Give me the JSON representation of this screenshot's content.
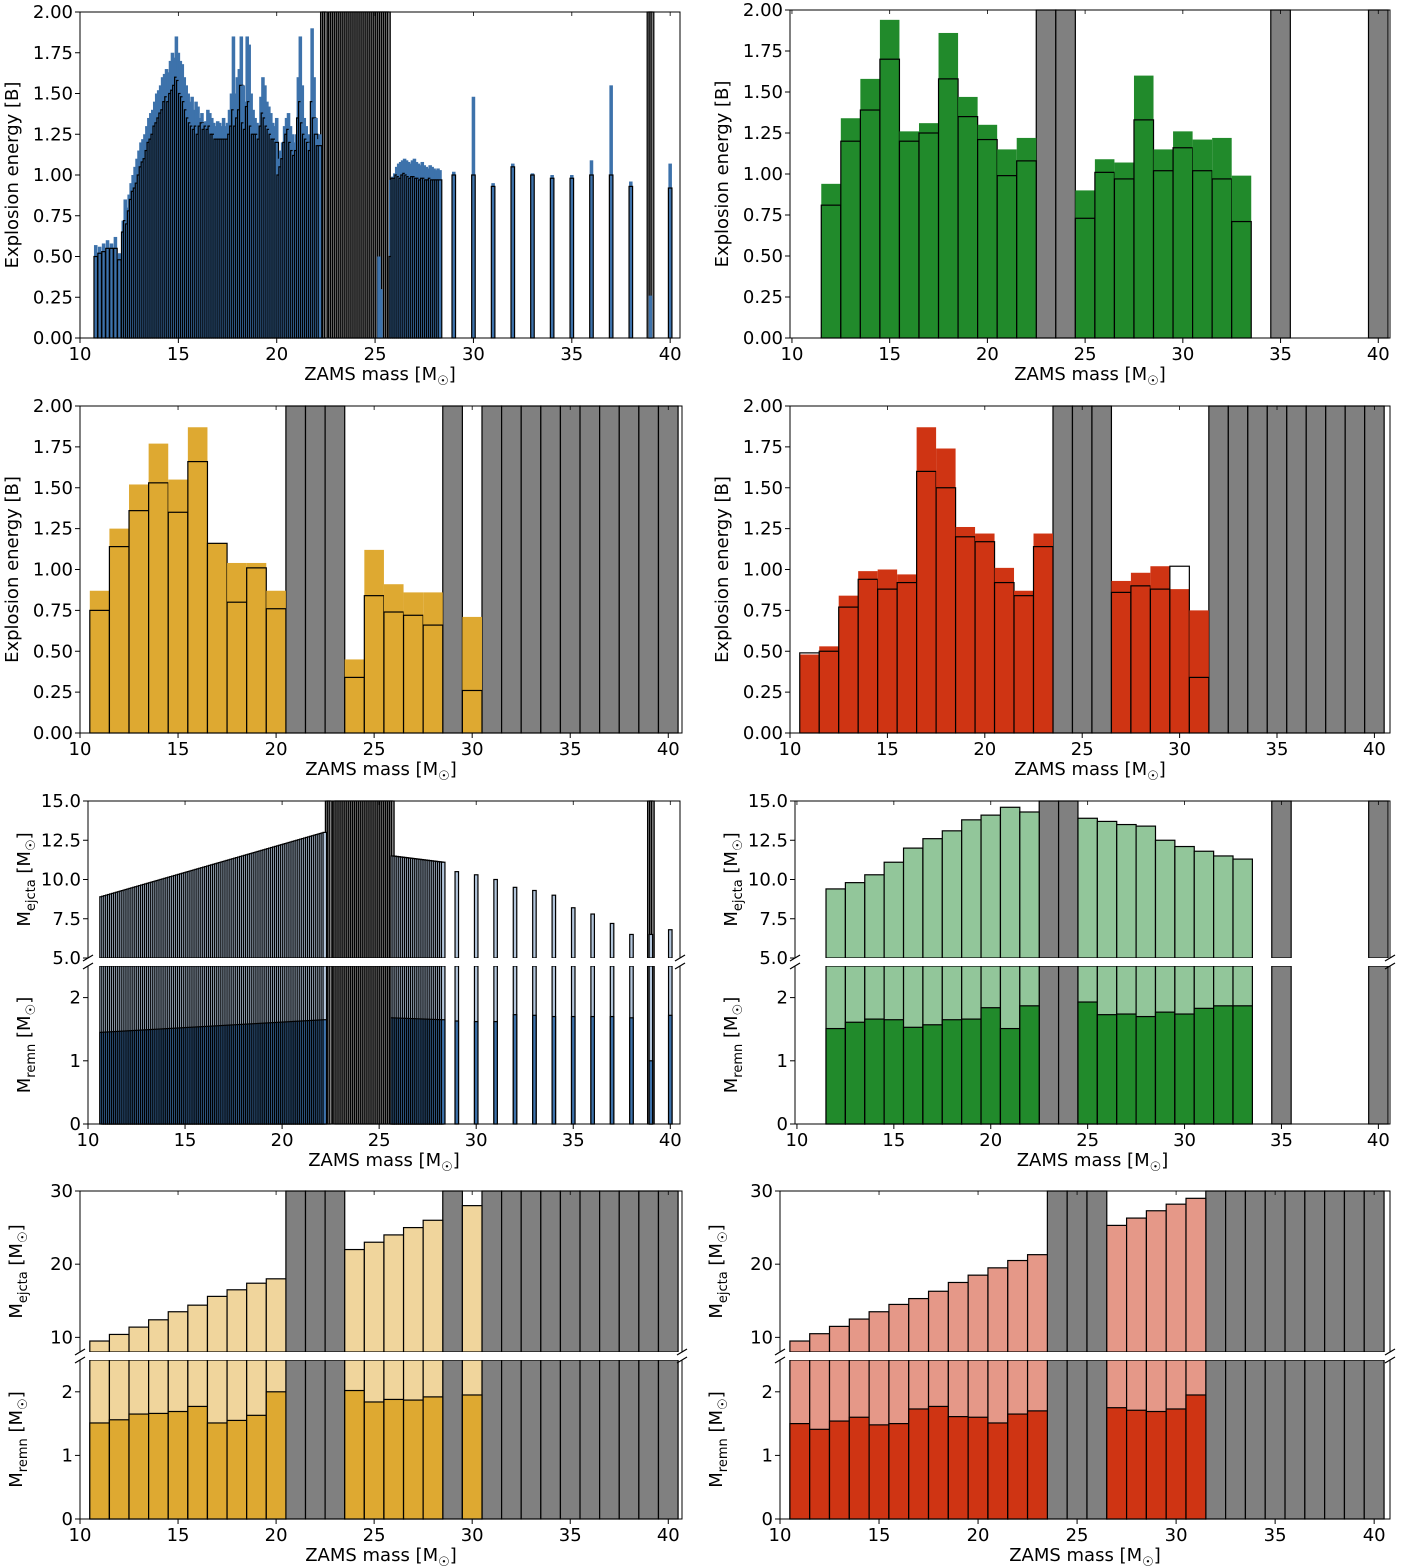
{
  "colors": {
    "blue": "#3d72ab",
    "blue_light": "#b3c6dc",
    "green": "#218a2b",
    "green_light": "#92c69a",
    "gold": "#dea931",
    "gold_light": "#f0d59c",
    "red": "#cf3413",
    "red_light": "#e59888",
    "gray": "#808080"
  },
  "chart_data": [
    {
      "id": "blue_energy",
      "type": "bar",
      "xlabel": "ZAMS mass [M☉]",
      "ylabel": "Explosion energy [B]",
      "xlim": [
        10,
        40.5
      ],
      "ylim": [
        0,
        2.0
      ],
      "xticks": [
        10,
        15,
        20,
        25,
        30,
        35,
        40
      ],
      "yticks": [
        0.0,
        0.25,
        0.5,
        0.75,
        1.0,
        1.25,
        1.5,
        1.75,
        2.0
      ],
      "ytick_labels": [
        "0.00",
        "0.25",
        "0.50",
        "0.75",
        "1.00",
        "1.25",
        "1.50",
        "1.75",
        "2.00"
      ],
      "bar_width": 0.18,
      "bins": [
        {
          "x": [
            10.8,
            12.0
          ],
          "step": 0.2,
          "total": [
            0.57,
            0.56,
            0.58,
            0.6,
            0.58,
            0.62,
            0.52
          ],
          "outline": [
            0.5,
            0.52,
            0.53,
            0.55,
            0.55,
            0.55,
            0.48
          ]
        },
        {
          "x": [
            12.2,
            14.0
          ],
          "step": 0.1,
          "total": [
            0.72,
            0.85,
            0.8,
            0.88,
            0.95,
            1.0,
            1.05,
            1.1,
            1.15,
            1.2,
            1.22,
            1.25,
            1.3,
            1.35,
            1.38,
            1.4,
            1.45,
            1.5,
            1.52
          ],
          "outline": [
            0.65,
            0.72,
            0.7,
            0.78,
            0.85,
            0.9,
            0.92,
            0.95,
            1.0,
            1.05,
            1.08,
            1.1,
            1.15,
            1.2,
            1.22,
            1.25,
            1.3,
            1.32,
            1.35
          ]
        },
        {
          "x": [
            14.1,
            16.0
          ],
          "step": 0.1,
          "total": [
            1.55,
            1.6,
            1.62,
            1.65,
            1.63,
            1.7,
            1.75,
            1.72,
            1.85,
            1.75,
            1.7,
            1.68,
            1.6,
            1.55,
            1.5,
            1.45,
            1.48,
            1.4,
            1.45,
            1.42
          ],
          "outline": [
            1.38,
            1.4,
            1.45,
            1.48,
            1.45,
            1.5,
            1.52,
            1.55,
            1.6,
            1.58,
            1.5,
            1.48,
            1.45,
            1.4,
            1.35,
            1.32,
            1.3,
            1.28,
            1.3,
            1.25
          ]
        },
        {
          "x": [
            16.1,
            20.0
          ],
          "step": 0.1,
          "total": [
            1.35,
            1.38,
            1.32,
            1.33,
            1.4,
            1.38,
            1.35,
            1.32,
            1.3,
            1.33,
            1.32,
            1.3,
            1.35,
            1.3,
            1.32,
            1.4,
            1.5,
            1.85,
            1.5,
            1.6,
            1.65,
            1.85,
            1.55,
            1.45,
            1.85,
            1.8,
            1.5,
            1.4,
            1.35,
            1.32,
            1.3,
            1.48,
            1.6,
            1.55,
            1.45,
            1.42,
            1.38,
            1.32,
            1.3,
            1.35
          ],
          "outline": [
            1.3,
            1.32,
            1.28,
            1.3,
            1.28,
            1.3,
            1.25,
            1.25,
            1.22,
            1.22,
            1.22,
            1.22,
            1.22,
            1.22,
            1.22,
            1.25,
            1.3,
            1.4,
            1.3,
            1.35,
            1.4,
            1.55,
            1.32,
            1.28,
            1.42,
            1.45,
            1.3,
            1.25,
            1.25,
            1.25,
            1.22,
            1.3,
            1.38,
            1.35,
            1.3,
            1.28,
            1.25,
            1.22,
            1.22,
            1.2
          ]
        },
        {
          "x": [
            20.1,
            22.2
          ],
          "step": 0.1,
          "total": [
            1.1,
            1.15,
            1.2,
            1.3,
            1.35,
            1.38,
            1.3,
            1.25,
            1.2,
            1.25,
            1.6,
            1.85,
            1.55,
            1.35,
            1.3,
            1.25,
            1.2,
            1.9,
            1.6,
            1.35,
            1.22,
            1.25
          ],
          "outline": [
            1.0,
            1.05,
            1.1,
            1.2,
            1.25,
            1.28,
            1.2,
            1.15,
            1.12,
            1.15,
            1.35,
            1.45,
            1.32,
            1.25,
            1.22,
            1.2,
            1.15,
            1.45,
            1.35,
            1.25,
            1.18,
            1.18
          ]
        },
        {
          "x": [
            25.2,
            25.3
          ],
          "step": 0.1,
          "total": [
            0.5,
            0.3
          ],
          "outline": [
            0,
            0
          ]
        },
        {
          "x": [
            25.8,
            28.3
          ],
          "step": 0.1,
          "total": [
            0.97,
            0.99,
            1.01,
            1.05,
            1.07,
            1.08,
            1.09,
            1.1,
            1.09,
            1.08,
            1.07,
            1.09,
            1.1,
            1.08,
            1.07,
            1.06,
            1.08,
            1.06,
            1.05,
            1.04,
            1.06,
            1.05,
            1.04,
            1.03,
            1.04,
            1.03
          ],
          "outline": [
            0.5,
            0.98,
            0.98,
            1.0,
            0.99,
            0.98,
            1.0,
            1.01,
            1.0,
            0.99,
            0.98,
            0.99,
            0.99,
            0.98,
            0.98,
            0.97,
            0.98,
            0.98,
            0.97,
            0.97,
            0.98,
            0.97,
            0.97,
            0.97,
            0.97,
            0.97
          ]
        },
        {
          "x": [
            29.0,
            40.0
          ],
          "step": 1.0,
          "total": [
            1.02,
            1.48,
            0.95,
            1.07,
            1.01,
            1.0,
            1.0,
            1.09,
            1.55,
            0.96,
            0.26,
            1.07
          ],
          "outline": [
            1.0,
            1.0,
            0.93,
            1.05,
            1.0,
            0.98,
            0.98,
            1.0,
            1.0,
            0.93,
            0.0,
            0.92
          ],
          "ex": [
            28.5,
            0,
            0,
            0,
            0,
            0,
            0,
            0,
            0,
            0,
            39.0,
            0
          ]
        }
      ],
      "gray": [
        [
          22.3,
          22.5
        ],
        [
          22.7,
          25.7
        ],
        [
          38.9,
          39.1
        ]
      ]
    },
    {
      "id": "green_energy",
      "type": "bar",
      "xlabel": "ZAMS mass [M☉]",
      "ylabel": "Explosion energy [B]",
      "xlim": [
        9.9,
        40.6
      ],
      "ylim": [
        0,
        2.0
      ],
      "xticks": [
        10,
        15,
        20,
        25,
        30,
        35,
        40
      ],
      "yticks": [
        0.0,
        0.25,
        0.5,
        0.75,
        1.0,
        1.25,
        1.5,
        1.75,
        2.0
      ],
      "ytick_labels": [
        "0.00",
        "0.25",
        "0.50",
        "0.75",
        "1.00",
        "1.25",
        "1.50",
        "1.75",
        "2.00"
      ],
      "bar_width": 1.0,
      "x": [
        12,
        13,
        14,
        15,
        16,
        17,
        18,
        19,
        20,
        21,
        22,
        25,
        26,
        27,
        28,
        29,
        30,
        31,
        32,
        33
      ],
      "total": [
        0.94,
        1.34,
        1.58,
        1.94,
        1.26,
        1.31,
        1.86,
        1.47,
        1.3,
        1.15,
        1.22,
        0.9,
        1.09,
        1.07,
        1.6,
        1.15,
        1.26,
        1.21,
        1.22,
        0.99
      ],
      "outline": [
        0.81,
        1.2,
        1.39,
        1.7,
        1.2,
        1.25,
        1.58,
        1.35,
        1.21,
        0.99,
        1.08,
        0.73,
        1.01,
        0.97,
        1.33,
        1.02,
        1.16,
        1.02,
        0.97,
        0.71
      ],
      "gray": [
        23,
        24,
        35,
        40
      ]
    },
    {
      "id": "gold_energy",
      "type": "bar",
      "xlabel": "ZAMS mass [M☉]",
      "ylabel": "Explosion energy [B]",
      "xlim": [
        10.0,
        40.7
      ],
      "ylim": [
        0,
        2.0
      ],
      "xticks": [
        10,
        15,
        20,
        25,
        30,
        35,
        40
      ],
      "yticks": [
        0.0,
        0.25,
        0.5,
        0.75,
        1.0,
        1.25,
        1.5,
        1.75,
        2.0
      ],
      "ytick_labels": [
        "0.00",
        "0.25",
        "0.50",
        "0.75",
        "1.00",
        "1.25",
        "1.50",
        "1.75",
        "2.00"
      ],
      "bar_width": 1.0,
      "x": [
        11,
        12,
        13,
        14,
        15,
        16,
        17,
        18,
        19,
        20,
        24,
        25,
        26,
        27,
        28,
        30
      ],
      "total": [
        0.87,
        1.25,
        1.52,
        1.77,
        1.55,
        1.87,
        1.16,
        1.04,
        1.04,
        0.87,
        0.45,
        1.12,
        0.91,
        0.86,
        0.86,
        0.71
      ],
      "outline": [
        0.75,
        1.14,
        1.36,
        1.53,
        1.35,
        1.66,
        1.16,
        0.8,
        1.01,
        0.76,
        0.34,
        0.84,
        0.74,
        0.72,
        0.66,
        0.26
      ],
      "gray": [
        21,
        22,
        23,
        29,
        31,
        32,
        33,
        34,
        35,
        36,
        37,
        38,
        39,
        40
      ]
    },
    {
      "id": "red_energy",
      "type": "bar",
      "xlabel": "ZAMS mass [M☉]",
      "ylabel": "Explosion energy [B]",
      "xlim": [
        10.0,
        40.8
      ],
      "ylim": [
        0,
        2.0
      ],
      "xticks": [
        10,
        15,
        20,
        25,
        30,
        35,
        40
      ],
      "yticks": [
        0.0,
        0.25,
        0.5,
        0.75,
        1.0,
        1.25,
        1.5,
        1.75,
        2.0
      ],
      "ytick_labels": [
        "0.00",
        "0.25",
        "0.50",
        "0.75",
        "1.00",
        "1.25",
        "1.50",
        "1.75",
        "2.00"
      ],
      "bar_width": 1.0,
      "x": [
        11,
        12,
        13,
        14,
        15,
        16,
        17,
        18,
        19,
        20,
        21,
        22,
        23,
        27,
        28,
        29,
        30,
        31
      ],
      "total": [
        0.48,
        0.53,
        0.84,
        0.99,
        1.0,
        0.97,
        1.87,
        1.74,
        1.26,
        1.22,
        1.01,
        0.87,
        1.22,
        0.93,
        0.98,
        1.02,
        0.88,
        0.75
      ],
      "outline": [
        0.49,
        0.5,
        0.77,
        0.94,
        0.88,
        0.92,
        1.6,
        1.5,
        1.2,
        1.17,
        0.92,
        0.84,
        1.14,
        0.86,
        0.9,
        0.88,
        1.02,
        0.34
      ],
      "gray": [
        24,
        25,
        26,
        32,
        33,
        34,
        35,
        36,
        37,
        38,
        39,
        40
      ]
    },
    {
      "id": "blue_mass",
      "type": "bar",
      "xlabel": "ZAMS mass [M☉]",
      "ylabel_top": "M_ejcta [M☉]",
      "ylabel_bottom": "M_remn [M☉]",
      "xlim": [
        10,
        40.5
      ],
      "ylim_top": [
        5,
        15
      ],
      "ylim_bottom": [
        0,
        2.5
      ],
      "xticks": [
        10,
        15,
        20,
        25,
        30,
        35,
        40
      ],
      "yticks_top": [
        5.0,
        7.5,
        10.0,
        12.5,
        15.0
      ],
      "ytick_labels_top": [
        "5.0",
        "7.5",
        "10.0",
        "12.5",
        "15.0"
      ],
      "yticks_bottom": [
        0,
        1,
        2
      ],
      "bar_width": 0.18,
      "bins": [
        {
          "x": [
            10.7,
            22.2
          ],
          "step": 0.1,
          "ej_start": 8.9,
          "ej_end": 13.0,
          "remn_start": 1.45,
          "remn_end": 1.65
        },
        {
          "x": [
            25.7,
            28.3
          ],
          "step": 0.1,
          "ej_start": 11.5,
          "ej_end": 11.1,
          "remn_start": 1.68,
          "remn_end": 1.65
        },
        {
          "x": [
            29.0,
            40.0
          ],
          "step": 1.0,
          "ej": [
            10.5,
            10.3,
            10.0,
            9.5,
            9.3,
            9.0,
            8.2,
            7.8,
            7.2,
            6.5,
            6.5,
            6.8
          ],
          "remn": [
            1.63,
            1.62,
            1.62,
            1.73,
            1.72,
            1.7,
            1.7,
            1.7,
            1.7,
            1.68,
            1.0,
            1.72
          ]
        }
      ],
      "gray": [
        [
          22.3,
          22.5
        ],
        [
          22.7,
          25.7
        ],
        [
          38.9,
          39.1
        ]
      ]
    },
    {
      "id": "green_mass",
      "type": "bar",
      "xlabel": "ZAMS mass [M☉]",
      "ylabel_top": "M_ejcta [M☉]",
      "ylabel_bottom": "M_remn [M☉]",
      "xlim": [
        9.9,
        40.6
      ],
      "ylim_top": [
        5,
        15
      ],
      "ylim_bottom": [
        0,
        2.5
      ],
      "xticks": [
        10,
        15,
        20,
        25,
        30,
        35,
        40
      ],
      "yticks_top": [
        5.0,
        7.5,
        10.0,
        12.5,
        15.0
      ],
      "ytick_labels_top": [
        "5.0",
        "7.5",
        "10.0",
        "12.5",
        "15.0"
      ],
      "yticks_bottom": [
        0,
        1,
        2
      ],
      "bar_width": 1.0,
      "x": [
        12,
        13,
        14,
        15,
        16,
        17,
        18,
        19,
        20,
        21,
        22,
        25,
        26,
        27,
        28,
        29,
        30,
        31,
        32,
        33
      ],
      "ej": [
        9.4,
        9.8,
        10.3,
        11.1,
        12.0,
        12.6,
        13.1,
        13.8,
        14.1,
        14.6,
        14.3,
        13.9,
        13.7,
        13.5,
        13.4,
        12.5,
        12.1,
        11.8,
        11.5,
        11.3
      ],
      "remn": [
        1.51,
        1.61,
        1.66,
        1.65,
        1.53,
        1.57,
        1.65,
        1.66,
        1.84,
        1.51,
        1.87,
        1.93,
        1.73,
        1.74,
        1.7,
        1.77,
        1.74,
        1.83,
        1.87,
        1.87
      ],
      "gray": [
        23,
        24,
        35,
        40
      ]
    },
    {
      "id": "gold_mass",
      "type": "bar",
      "xlabel": "ZAMS mass [M☉]",
      "ylabel_top": "M_ejcta [M☉]",
      "ylabel_bottom": "M_remn [M☉]",
      "xlim": [
        10.0,
        40.7
      ],
      "ylim_top": [
        8,
        30
      ],
      "ylim_bottom": [
        0,
        2.5
      ],
      "xticks": [
        10,
        15,
        20,
        25,
        30,
        35,
        40
      ],
      "yticks_top": [
        10,
        20,
        30
      ],
      "yticks_bottom": [
        0,
        1,
        2
      ],
      "bar_width": 1.0,
      "x": [
        11,
        12,
        13,
        14,
        15,
        16,
        17,
        18,
        19,
        20,
        24,
        25,
        26,
        27,
        28,
        30
      ],
      "ej": [
        9.5,
        10.4,
        11.4,
        12.4,
        13.5,
        14.4,
        15.6,
        16.5,
        17.4,
        18.0,
        22.0,
        23.0,
        24.0,
        25.0,
        26.0,
        28.0
      ],
      "remn": [
        1.51,
        1.56,
        1.65,
        1.66,
        1.69,
        1.77,
        1.51,
        1.55,
        1.63,
        2.0,
        2.02,
        1.84,
        1.88,
        1.87,
        1.92,
        1.95
      ],
      "gray": [
        21,
        22,
        23,
        29,
        31,
        32,
        33,
        34,
        35,
        36,
        37,
        38,
        39,
        40
      ]
    },
    {
      "id": "red_mass",
      "type": "bar",
      "xlabel": "ZAMS mass [M☉]",
      "ylabel_top": "M_ejcta [M☉]",
      "ylabel_bottom": "M_remn [M☉]",
      "xlim": [
        10.0,
        40.8
      ],
      "ylim_top": [
        8,
        30
      ],
      "ylim_bottom": [
        0,
        2.5
      ],
      "xticks": [
        10,
        15,
        20,
        25,
        30,
        35,
        40
      ],
      "yticks_top": [
        10,
        20,
        30
      ],
      "yticks_bottom": [
        0,
        1,
        2
      ],
      "bar_width": 1.0,
      "x": [
        11,
        12,
        13,
        14,
        15,
        16,
        17,
        18,
        19,
        20,
        21,
        22,
        23,
        27,
        28,
        29,
        30,
        31
      ],
      "ej": [
        9.5,
        10.5,
        11.5,
        12.5,
        13.5,
        14.5,
        15.3,
        16.3,
        17.5,
        18.5,
        19.5,
        20.5,
        21.3,
        25.3,
        26.3,
        27.3,
        28.2,
        29.0
      ],
      "remn": [
        1.5,
        1.41,
        1.54,
        1.6,
        1.48,
        1.5,
        1.73,
        1.77,
        1.61,
        1.6,
        1.51,
        1.65,
        1.7,
        1.75,
        1.71,
        1.69,
        1.73,
        1.95
      ],
      "gray": [
        24,
        25,
        26,
        32,
        33,
        34,
        35,
        36,
        37,
        38,
        39,
        40
      ]
    }
  ]
}
